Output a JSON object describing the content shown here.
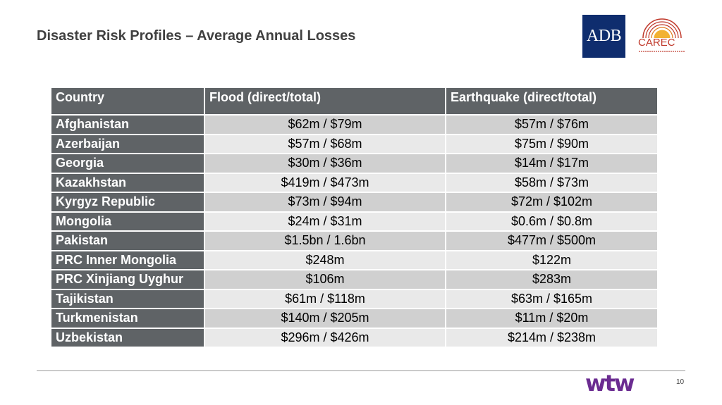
{
  "slide": {
    "title": "Disaster Risk Profiles – Average Annual Losses",
    "page_number": "10"
  },
  "logos": {
    "adb": "ADB",
    "carec": "CAREC",
    "wtw": "wtw"
  },
  "colors": {
    "header_bg": "#5f6366",
    "row_dark": "#d0d0d0",
    "row_light": "#e9e9e9",
    "adb_blue": "#0f2d6e",
    "carec_red": "#c0392b",
    "wtw_purple": "#6b2c91"
  },
  "table": {
    "headers": [
      "Country",
      "Flood (direct/total)",
      "Earthquake (direct/total)"
    ],
    "rows": [
      {
        "country": "Afghanistan",
        "flood": "$62m / $79m",
        "earthquake": "$57m / $76m"
      },
      {
        "country": "Azerbaijan",
        "flood": "$57m / $68m",
        "earthquake": "$75m / $90m"
      },
      {
        "country": "Georgia",
        "flood": "$30m / $36m",
        "earthquake": "$14m / $17m"
      },
      {
        "country": "Kazakhstan",
        "flood": "$419m / $473m",
        "earthquake": "$58m / $73m"
      },
      {
        "country": "Kyrgyz Republic",
        "flood": "$73m / $94m",
        "earthquake": "$72m / $102m"
      },
      {
        "country": "Mongolia",
        "flood": "$24m / $31m",
        "earthquake": "$0.6m / $0.8m"
      },
      {
        "country": "Pakistan",
        "flood": "$1.5bn / 1.6bn",
        "earthquake": "$477m / $500m"
      },
      {
        "country": "PRC Inner Mongolia",
        "flood": "$248m",
        "earthquake": "$122m"
      },
      {
        "country": "PRC Xinjiang Uyghur",
        "flood": "$106m",
        "earthquake": "$283m"
      },
      {
        "country": "Tajikistan",
        "flood": "$61m / $118m",
        "earthquake": "$63m / $165m"
      },
      {
        "country": "Turkmenistan",
        "flood": "$140m / $205m",
        "earthquake": "$11m / $20m"
      },
      {
        "country": "Uzbekistan",
        "flood": "$296m / $426m",
        "earthquake": "$214m / $238m"
      }
    ]
  }
}
